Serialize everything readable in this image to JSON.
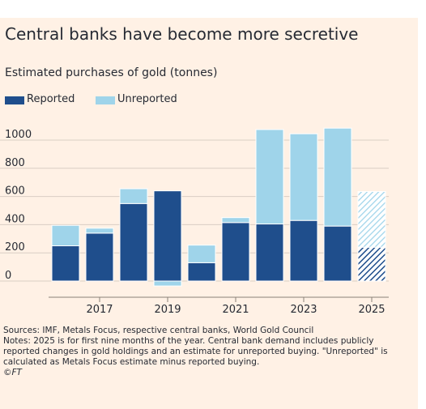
{
  "title": "Central banks have become more secretive",
  "subtitle": "Estimated purchases of gold (tonnes)",
  "legend": [
    {
      "label": "Reported",
      "color": "#1f4e8c"
    },
    {
      "label": "Unreported",
      "color": "#9fd4ea"
    }
  ],
  "chart_data": {
    "type": "bar",
    "stacked": true,
    "categories": [
      "2016",
      "2017",
      "2018",
      "2019",
      "2020",
      "2021",
      "2022",
      "2023",
      "2024",
      "2025"
    ],
    "x_tick_labels": [
      "2017",
      "2019",
      "2021",
      "2023",
      "2025"
    ],
    "series": [
      {
        "name": "Reported",
        "color": "#1f4e8c",
        "values": [
          250,
          340,
          550,
          640,
          130,
          415,
          405,
          430,
          390,
          240
        ]
      },
      {
        "name": "Unreported",
        "color": "#9fd4ea",
        "values": [
          145,
          35,
          105,
          -35,
          125,
          35,
          670,
          615,
          695,
          395
        ]
      }
    ],
    "hatched_categories": [
      "2025"
    ],
    "y_ticks": [
      0,
      200,
      400,
      600,
      800,
      1000
    ],
    "ylim": [
      -60,
      1150
    ],
    "grid": true
  },
  "sources": "Sources: IMF, Metals Focus, respective central banks, World Gold Council",
  "notes": "Notes: 2025 is for first nine months of the year. Central bank demand includes publicly reported changes in gold holdings and an estimate for unreported buying. \"Unreported\" is calculated as Metals Focus estimate minus reported buying.",
  "credit": "©FT"
}
